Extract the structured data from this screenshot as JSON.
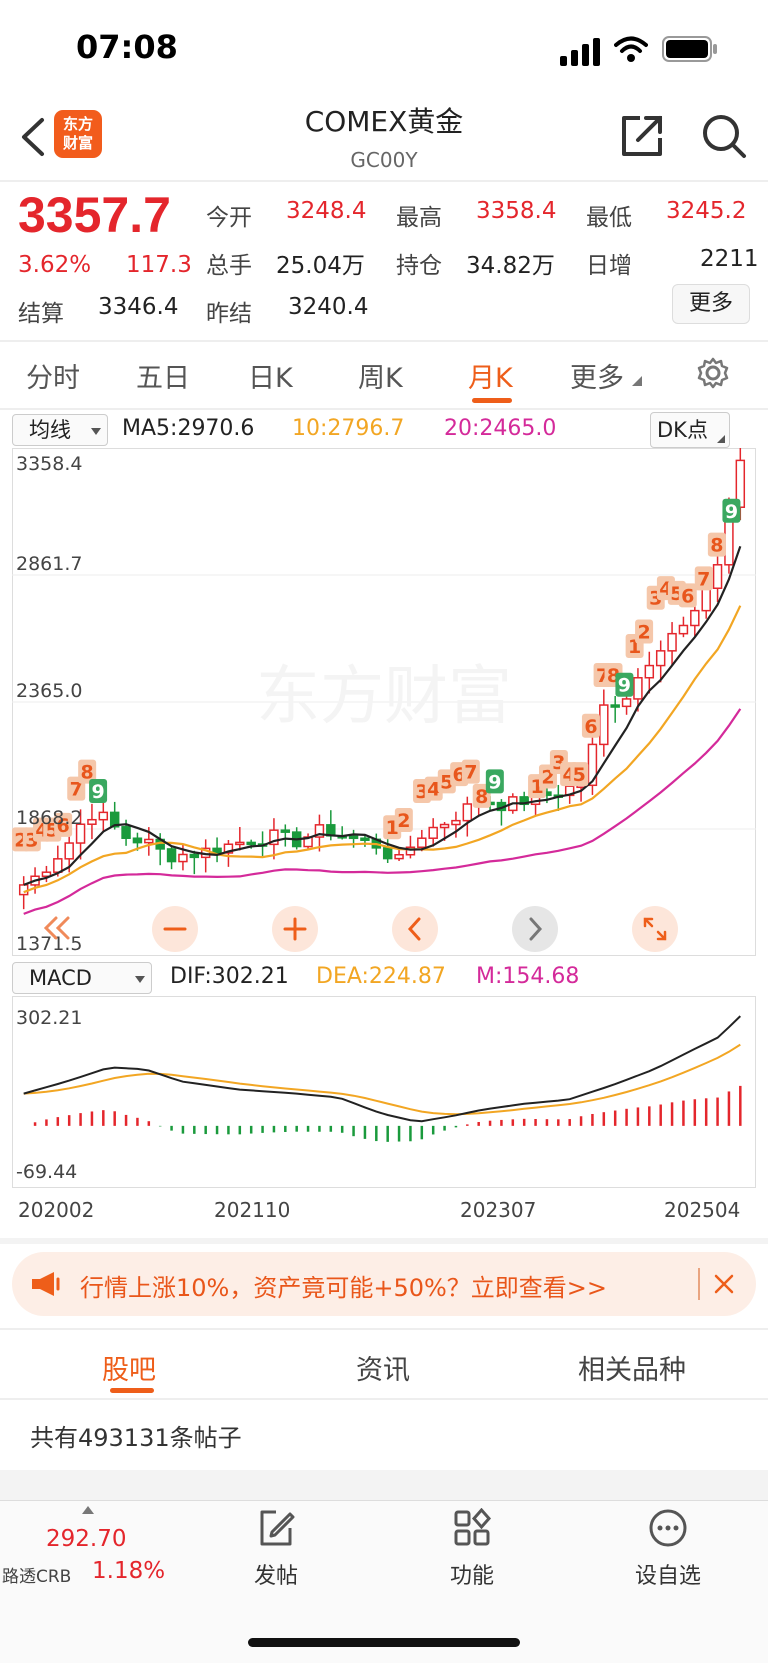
{
  "status_bar": {
    "time": "07:08"
  },
  "nav": {
    "title": "COMEX黄金",
    "subtitle": "GC00Y",
    "logo_line1": "东方",
    "logo_line2": "财富"
  },
  "quote": {
    "price": "3357.7",
    "change_pct": "3.62%",
    "change_amt": "117.3",
    "open_label": "今开",
    "open": "3248.4",
    "high_label": "最高",
    "high": "3358.4",
    "low_label": "最低",
    "low": "3245.2",
    "volume_label": "总手",
    "volume": "25.04万",
    "oi_label": "持仓",
    "oi": "34.82万",
    "daily_inc_label": "日增",
    "daily_inc": "2211",
    "settle_label": "结算",
    "settle": "3346.4",
    "prev_settle_label": "昨结",
    "prev_settle": "3240.4",
    "more_button": "更多"
  },
  "tabs": [
    {
      "label": "分时"
    },
    {
      "label": "五日"
    },
    {
      "label": "日K"
    },
    {
      "label": "周K"
    },
    {
      "label": "月K",
      "active": true
    },
    {
      "label": "更多"
    }
  ],
  "chart_header": {
    "ma_select": "均线",
    "ma5": "MA5:2970.6",
    "ma10": "10:2796.7",
    "ma20": "20:2465.0",
    "dk_button": "DK点",
    "macd_select": "MACD",
    "dif": "DIF:302.21",
    "dea": "DEA:224.87",
    "m": "M:154.68"
  },
  "chart_data": [
    {
      "type": "candlestick",
      "y_axis_labels": [
        "3358.4",
        "2861.7",
        "2365.0",
        "1868.2",
        "1371.5"
      ],
      "ylim": [
        1371.5,
        3358.4
      ],
      "x_labels": [
        "202002",
        "202110",
        "202307",
        "202504"
      ],
      "series_colors": {
        "up": "#e4262c",
        "down": "#1a9a3c",
        "ma5": "#222222",
        "ma10": "#f2a623",
        "ma20": "#d42a9a"
      },
      "td_counts": [
        {
          "label": "2",
          "x": 0.004,
          "price": 1780
        },
        {
          "label": "3",
          "x": 0.019,
          "price": 1780
        },
        {
          "label": "4",
          "x": 0.033,
          "price": 1820
        },
        {
          "label": "5",
          "x": 0.047,
          "price": 1820
        },
        {
          "label": "6",
          "x": 0.062,
          "price": 1840
        },
        {
          "label": "7",
          "x": 0.08,
          "price": 1990
        },
        {
          "label": "8",
          "x": 0.095,
          "price": 2060
        },
        {
          "label": "9",
          "x": 0.11,
          "price": 1980,
          "green": true
        },
        {
          "label": "1",
          "x": 0.514,
          "price": 1830
        },
        {
          "label": "2",
          "x": 0.53,
          "price": 1860
        },
        {
          "label": "3",
          "x": 0.555,
          "price": 1980
        },
        {
          "label": "4",
          "x": 0.571,
          "price": 1990
        },
        {
          "label": "5",
          "x": 0.589,
          "price": 2020
        },
        {
          "label": "6",
          "x": 0.606,
          "price": 2050
        },
        {
          "label": "7",
          "x": 0.622,
          "price": 2060
        },
        {
          "label": "8",
          "x": 0.637,
          "price": 1960
        },
        {
          "label": "9",
          "x": 0.655,
          "price": 2020,
          "green": true
        },
        {
          "label": "1",
          "x": 0.713,
          "price": 2000
        },
        {
          "label": "2",
          "x": 0.728,
          "price": 2040
        },
        {
          "label": "3",
          "x": 0.743,
          "price": 2100
        },
        {
          "label": "4",
          "x": 0.757,
          "price": 2050
        },
        {
          "label": "5",
          "x": 0.771,
          "price": 2050
        },
        {
          "label": "6",
          "x": 0.787,
          "price": 2250
        },
        {
          "label": "7",
          "x": 0.803,
          "price": 2460
        },
        {
          "label": "8",
          "x": 0.818,
          "price": 2460
        },
        {
          "label": "9",
          "x": 0.833,
          "price": 2420,
          "green": true
        },
        {
          "label": "1",
          "x": 0.847,
          "price": 2580
        },
        {
          "label": "2",
          "x": 0.86,
          "price": 2640
        },
        {
          "label": "3",
          "x": 0.876,
          "price": 2780
        },
        {
          "label": "4",
          "x": 0.89,
          "price": 2820
        },
        {
          "label": "5",
          "x": 0.905,
          "price": 2800
        },
        {
          "label": "6",
          "x": 0.92,
          "price": 2790
        },
        {
          "label": "7",
          "x": 0.942,
          "price": 2860
        },
        {
          "label": "8",
          "x": 0.96,
          "price": 3000
        },
        {
          "label": "9",
          "x": 0.98,
          "price": 3140,
          "green": true
        }
      ]
    },
    {
      "type": "macd",
      "y_axis_labels": [
        "302.21",
        "-69.44"
      ],
      "ylim": [
        -69.44,
        302.21
      ]
    }
  ],
  "watermark": "东方财富",
  "banner": {
    "text": "行情上涨10%，资产竟可能+50%？立即查看>>"
  },
  "section_tabs": [
    {
      "label": "股吧",
      "active": true
    },
    {
      "label": "资讯"
    },
    {
      "label": "相关品种"
    }
  ],
  "post_count": "共有493131条帖子",
  "bottom_bar": {
    "crb_value": "292.70",
    "crb_label": "路透CRB",
    "crb_pct": "1.18%",
    "post": "发帖",
    "function": "功能",
    "watchlist": "设自选"
  }
}
